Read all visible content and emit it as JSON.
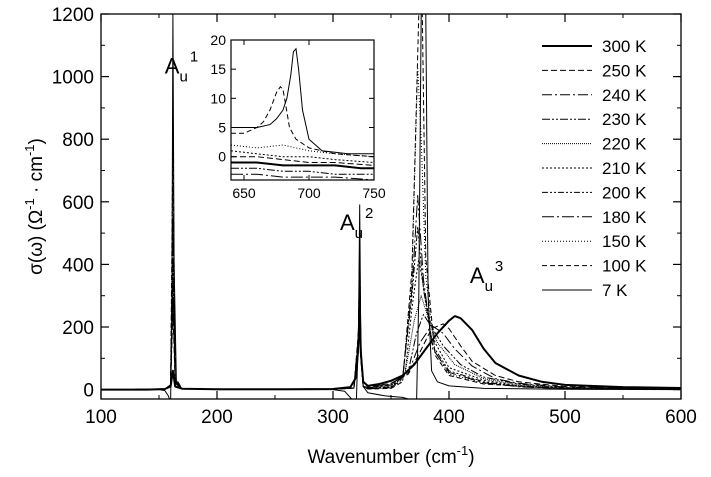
{
  "chart_data": {
    "type": "line",
    "xlabel": "Wavenumber",
    "xlabel_unit": "(cm",
    "xlabel_unit_exp": "-1",
    "xlabel_close": ")",
    "ylabel_prefix": "σ(ω)",
    "ylabel_unit": "(Ω",
    "ylabel_exp1": "-1",
    "ylabel_mid": " · cm",
    "ylabel_exp2": "-1",
    "ylabel_close": ")",
    "xlim": [
      100,
      600
    ],
    "ylim": [
      -30,
      1200
    ],
    "xticks": [
      "100",
      "200",
      "300",
      "400",
      "500",
      "600"
    ],
    "yticks": [
      "0",
      "200",
      "400",
      "600",
      "800",
      "1000",
      "1200"
    ],
    "peak_labels": [
      {
        "base": "A",
        "sub": "u",
        "sup": "1",
        "x": 155,
        "y": 1010
      },
      {
        "base": "A",
        "sub": "u",
        "sup": "2",
        "x": 306,
        "y": 510
      },
      {
        "base": "A",
        "sub": "u",
        "sup": "3",
        "x": 418,
        "y": 340
      }
    ],
    "series": [
      {
        "name": "300 K",
        "dash": "",
        "width": 2.0,
        "x": [
          100,
          140,
          155,
          160,
          162,
          164,
          170,
          200,
          260,
          300,
          315,
          320,
          322,
          323,
          324,
          326,
          330,
          340,
          350,
          360,
          370,
          380,
          390,
          400,
          405,
          410,
          420,
          430,
          440,
          460,
          480,
          500,
          550,
          600
        ],
        "y": [
          0,
          0,
          2,
          10,
          60,
          10,
          3,
          1,
          1,
          2,
          8,
          40,
          150,
          280,
          120,
          25,
          12,
          18,
          28,
          45,
          80,
          130,
          180,
          220,
          235,
          228,
          190,
          130,
          85,
          45,
          25,
          15,
          8,
          5
        ]
      },
      {
        "name": "250 K",
        "dash": "6,3",
        "width": 1.0,
        "x": [
          100,
          155,
          160,
          162,
          164,
          170,
          300,
          318,
          322,
          323,
          324,
          326,
          330,
          350,
          365,
          375,
          385,
          395,
          400,
          410,
          420,
          440,
          460,
          500,
          600
        ],
        "y": [
          0,
          1,
          15,
          250,
          20,
          2,
          1,
          5,
          120,
          320,
          100,
          10,
          8,
          20,
          50,
          120,
          195,
          210,
          195,
          140,
          90,
          45,
          25,
          10,
          3
        ]
      },
      {
        "name": "240 K",
        "dash": "10,3,2,3",
        "width": 1.0,
        "x": [
          100,
          155,
          160,
          162,
          164,
          170,
          300,
          318,
          322,
          323,
          324,
          326,
          330,
          350,
          365,
          375,
          385,
          395,
          405,
          420,
          440,
          460,
          500,
          600
        ],
        "y": [
          0,
          1,
          15,
          300,
          20,
          2,
          1,
          5,
          130,
          340,
          100,
          10,
          6,
          18,
          55,
          150,
          205,
          180,
          130,
          75,
          35,
          20,
          8,
          3
        ]
      },
      {
        "name": "230 K",
        "dash": "8,2,2,2,2,2",
        "width": 1.0,
        "x": [
          100,
          155,
          160,
          162,
          164,
          170,
          300,
          318,
          322,
          323,
          324,
          326,
          330,
          350,
          365,
          372,
          378,
          385,
          395,
          410,
          430,
          460,
          500,
          600
        ],
        "y": [
          0,
          1,
          15,
          350,
          25,
          2,
          1,
          5,
          140,
          360,
          110,
          10,
          5,
          15,
          60,
          180,
          240,
          200,
          140,
          80,
          40,
          18,
          6,
          2
        ]
      },
      {
        "name": "220 K",
        "dash": "1,1",
        "width": 1.0,
        "x": [
          100,
          155,
          160,
          162,
          164,
          170,
          300,
          318,
          322,
          323,
          324,
          326,
          330,
          350,
          362,
          370,
          376,
          382,
          390,
          405,
          430,
          460,
          500,
          600
        ],
        "y": [
          0,
          1,
          15,
          400,
          25,
          2,
          1,
          5,
          150,
          380,
          110,
          10,
          4,
          12,
          50,
          220,
          300,
          230,
          150,
          80,
          35,
          15,
          5,
          2
        ]
      },
      {
        "name": "210 K",
        "dash": "2,2",
        "width": 1.0,
        "x": [
          100,
          155,
          160,
          162,
          164,
          170,
          300,
          318,
          322,
          323,
          324,
          326,
          330,
          350,
          362,
          368,
          374,
          380,
          388,
          400,
          430,
          460,
          500,
          600
        ],
        "y": [
          0,
          1,
          15,
          450,
          25,
          2,
          1,
          5,
          160,
          400,
          110,
          10,
          4,
          10,
          45,
          260,
          420,
          280,
          150,
          70,
          30,
          12,
          4,
          2
        ]
      },
      {
        "name": "200 K",
        "dash": "6,2,2,2,2,2",
        "width": 1.0,
        "x": [
          100,
          155,
          160,
          162,
          164,
          170,
          300,
          318,
          322,
          323,
          324,
          326,
          330,
          350,
          360,
          368,
          373,
          378,
          386,
          400,
          430,
          460,
          500,
          600
        ],
        "y": [
          0,
          1,
          15,
          500,
          30,
          2,
          1,
          5,
          170,
          420,
          110,
          10,
          3,
          8,
          40,
          300,
          520,
          320,
          140,
          60,
          25,
          10,
          4,
          1
        ]
      },
      {
        "name": "180 K",
        "dash": "12,3,2,3",
        "width": 1.0,
        "x": [
          100,
          155,
          160,
          162,
          164,
          170,
          300,
          318,
          322,
          323,
          324,
          326,
          330,
          350,
          360,
          368,
          373,
          378,
          386,
          400,
          430,
          460,
          500,
          600
        ],
        "y": [
          0,
          1,
          15,
          550,
          30,
          2,
          1,
          5,
          175,
          440,
          110,
          10,
          3,
          6,
          35,
          320,
          620,
          350,
          130,
          55,
          22,
          9,
          3,
          1
        ]
      },
      {
        "name": "150 K",
        "dash": "1,2",
        "width": 1.0,
        "x": [
          100,
          155,
          160,
          162,
          164,
          170,
          300,
          318,
          322,
          323,
          324,
          326,
          330,
          350,
          360,
          368,
          373,
          376,
          380,
          388,
          400,
          430,
          500,
          600
        ],
        "y": [
          0,
          1,
          15,
          650,
          35,
          2,
          1,
          5,
          180,
          460,
          110,
          10,
          2,
          5,
          30,
          350,
          1030,
          800,
          360,
          120,
          50,
          20,
          3,
          1
        ]
      },
      {
        "name": "100 K",
        "dash": "5,3",
        "width": 1.0,
        "x": [
          100,
          155,
          160,
          162,
          164,
          170,
          300,
          318,
          322,
          323,
          324,
          326,
          330,
          350,
          360,
          368,
          374,
          377,
          380,
          388,
          400,
          430,
          500,
          600
        ],
        "y": [
          0,
          1,
          15,
          800,
          40,
          2,
          1,
          5,
          190,
          480,
          110,
          10,
          2,
          4,
          25,
          380,
          1200,
          1200,
          420,
          110,
          45,
          18,
          3,
          1
        ]
      },
      {
        "name": "7 K",
        "dash": "",
        "width": 1.0,
        "x": [
          100,
          150,
          155,
          158,
          160,
          161,
          162,
          163,
          165,
          170,
          200,
          250,
          300,
          310,
          316,
          320,
          322,
          323,
          324,
          326,
          330,
          345,
          360,
          365,
          370,
          372,
          374,
          376,
          378,
          380,
          382,
          385,
          390,
          400,
          430,
          500,
          600
        ],
        "y": [
          0,
          0,
          -3,
          -20,
          -40,
          200,
          1200,
          400,
          20,
          3,
          0,
          0,
          0,
          -5,
          -30,
          -60,
          200,
          590,
          150,
          10,
          -10,
          -20,
          -25,
          -30,
          -40,
          -50,
          300,
          1200,
          1200,
          1200,
          300,
          60,
          25,
          12,
          4,
          1,
          0
        ]
      }
    ],
    "inset": {
      "xlim": [
        640,
        750
      ],
      "ylim": [
        -4,
        20
      ],
      "xticks": [
        "650",
        "700",
        "750"
      ],
      "yticks": [
        "0",
        "5",
        "10",
        "15",
        "20"
      ],
      "series": [
        {
          "name": "7 K",
          "dash": "",
          "width": 1.0,
          "x": [
            640,
            650,
            660,
            670,
            675,
            680,
            683,
            686,
            688,
            690,
            692,
            695,
            700,
            710,
            730,
            750
          ],
          "y": [
            5,
            5,
            5,
            5.5,
            6.5,
            8,
            10,
            14,
            18,
            18.5,
            15,
            8,
            3,
            1,
            0.5,
            0.5
          ]
        },
        {
          "name": "100 K",
          "dash": "5,3",
          "width": 1.0,
          "x": [
            640,
            650,
            660,
            665,
            670,
            675,
            678,
            680,
            682,
            685,
            690,
            700,
            720,
            750
          ],
          "y": [
            4,
            4,
            5,
            6,
            8,
            11,
            12,
            11.5,
            9,
            5,
            3,
            1.5,
            0.5,
            0
          ]
        },
        {
          "name": "300 K",
          "dash": "",
          "width": 2.0,
          "x": [
            640,
            660,
            680,
            700,
            720,
            740,
            750
          ],
          "y": [
            -1,
            -1,
            -1.5,
            -1.5,
            -1.5,
            -2,
            -2
          ]
        },
        {
          "name": "150 K",
          "dash": "1,2",
          "width": 1.0,
          "x": [
            640,
            660,
            680,
            700,
            720,
            750
          ],
          "y": [
            2,
            1.5,
            2,
            1,
            0.5,
            0
          ]
        },
        {
          "name": "210 K",
          "dash": "2,2",
          "width": 1.0,
          "x": [
            640,
            660,
            680,
            700,
            720,
            750
          ],
          "y": [
            1,
            0.5,
            0,
            0,
            -0.5,
            -1
          ]
        },
        {
          "name": "230 K",
          "dash": "8,2,2,2,2,2",
          "width": 1.0,
          "x": [
            640,
            660,
            680,
            700,
            720,
            750
          ],
          "y": [
            -2,
            -2,
            -2.5,
            -2.5,
            -3,
            -3
          ]
        },
        {
          "name": "250 K",
          "dash": "6,3",
          "width": 1.0,
          "x": [
            640,
            660,
            680,
            700,
            720,
            750
          ],
          "y": [
            0,
            0,
            -0.5,
            -1,
            -1,
            -1.5
          ]
        },
        {
          "name": "180 K",
          "dash": "12,3,2,3",
          "width": 1.0,
          "x": [
            640,
            660,
            680,
            700,
            720,
            750
          ],
          "y": [
            -3,
            -3,
            -3.5,
            -3.5,
            -3.5,
            -4
          ]
        }
      ]
    }
  }
}
